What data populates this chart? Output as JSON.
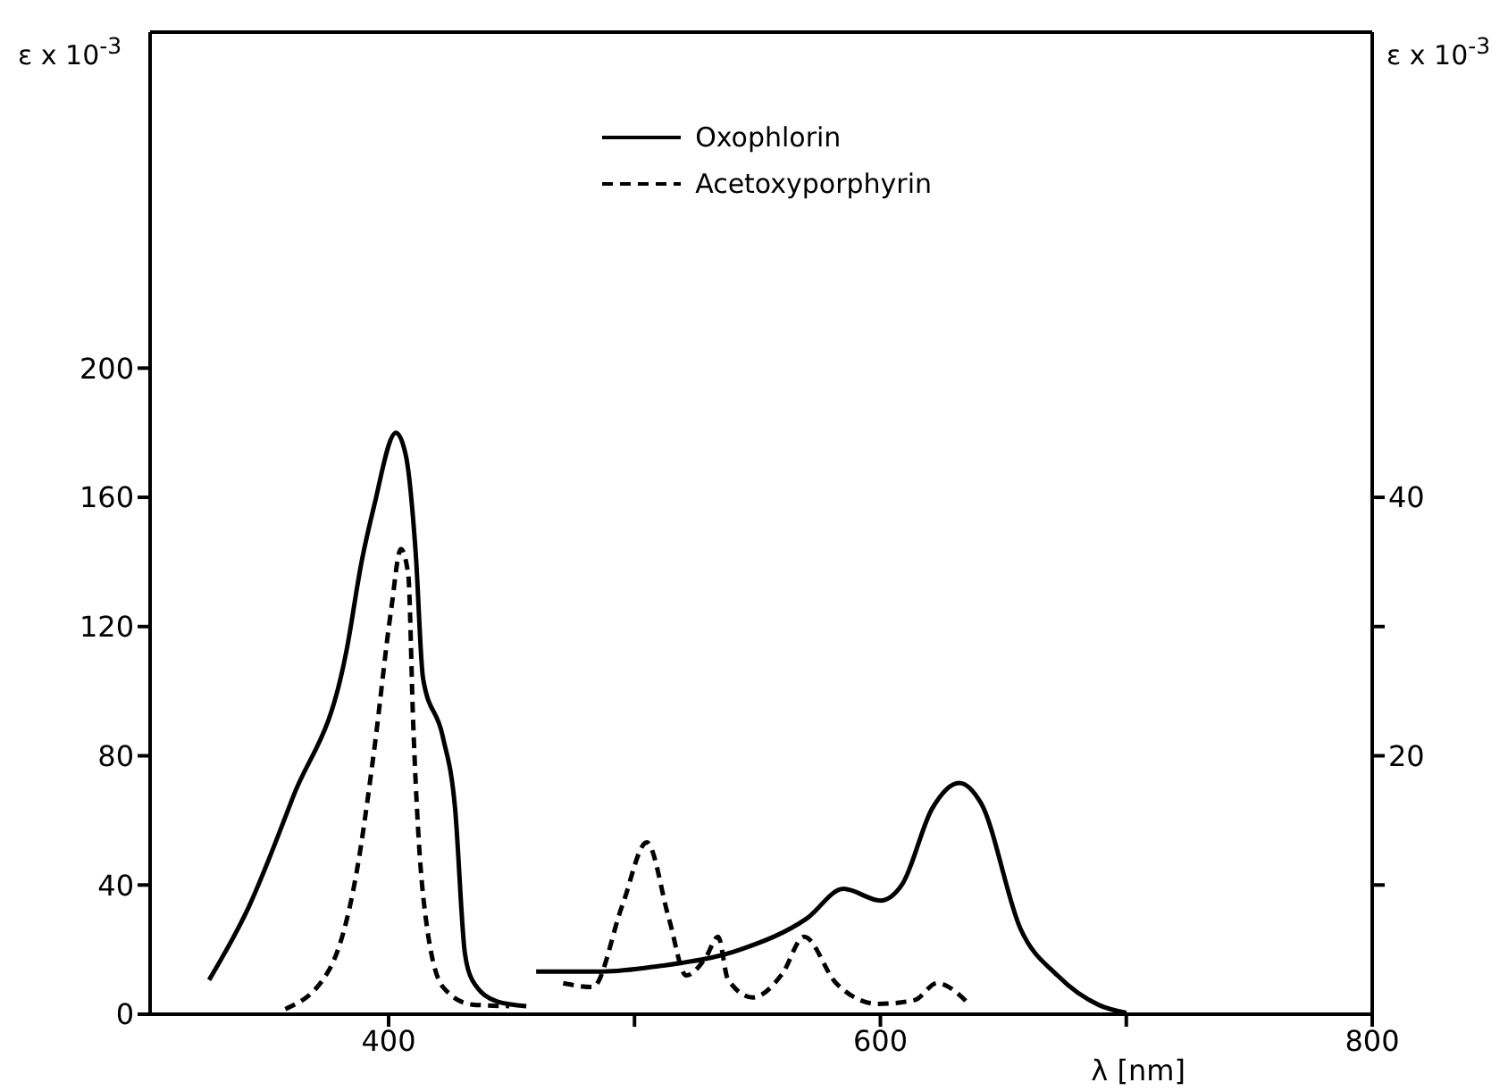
{
  "chart_data": {
    "type": "line",
    "ylabel": "ε x 10$^{-3}$",
    "y2label": "ε x 10$^{-3}$",
    "xlabel": "λ [nm]",
    "xlim": [
      303,
      800
    ],
    "xticks": [
      400,
      {
        "value": 500,
        "label": null
      },
      600,
      {
        "value": 700,
        "label": null
      },
      800
    ],
    "ylim": [
      0,
      304
    ],
    "yticks": [
      0,
      40,
      80,
      120,
      160,
      200
    ],
    "y2lim": [
      0,
      76
    ],
    "y2ticks": [
      {
        "value": 10,
        "label": null
      },
      20,
      {
        "value": 30,
        "label": null
      },
      40
    ],
    "legend": "top",
    "marker": "none",
    "series": [
      {
        "name": "Oxophlorin",
        "color": "#000000",
        "line_style": "solid",
        "x": [
          327,
          343,
          361,
          383,
          389,
          394,
          403,
          407,
          411,
          414,
          422,
          427,
          431,
          434,
          444,
          456
        ],
        "values": [
          10.6,
          33,
          67,
          113,
          140,
          157,
          180,
          173,
          143,
          104,
          86,
          64,
          19,
          10.6,
          4,
          2.5
        ]
      },
      {
        "name": "Acetoxyporphyrin",
        "color": "#000000",
        "line_style": "dashed",
        "x": [
          358,
          376,
          387,
          394,
          401,
          405,
          408,
          410,
          414,
          422,
          434,
          449
        ],
        "values": [
          1.6,
          14,
          44,
          81,
          125,
          144,
          136,
          90,
          37,
          8.5,
          3,
          2.5
        ]
      },
      {
        "color": "#000000",
        "line_style": "solid",
        "axis": "y2",
        "x": [
          460,
          487,
          509,
          543,
          570,
          585,
          600,
          609,
          621,
          632,
          641,
          657,
          672,
          689,
          700
        ],
        "values": [
          3.3,
          3.3,
          3.7,
          5.0,
          7.4,
          9.7,
          8.8,
          10.1,
          15.9,
          17.9,
          16.3,
          6.6,
          3.0,
          0.7,
          0.1
        ]
      },
      {
        "color": "#000000",
        "line_style": "dashed",
        "axis": "y2",
        "x": [
          471,
          483,
          495,
          505,
          514,
          521,
          529,
          534,
          538,
          548,
          560,
          569,
          582,
          599,
          614,
          623,
          636
        ],
        "values": [
          2.4,
          2.1,
          8.4,
          13.3,
          7.4,
          3.0,
          4.4,
          6.0,
          2.7,
          1.3,
          3.1,
          6.0,
          2.4,
          0.8,
          1.1,
          2.4,
          0.8
        ]
      }
    ]
  }
}
